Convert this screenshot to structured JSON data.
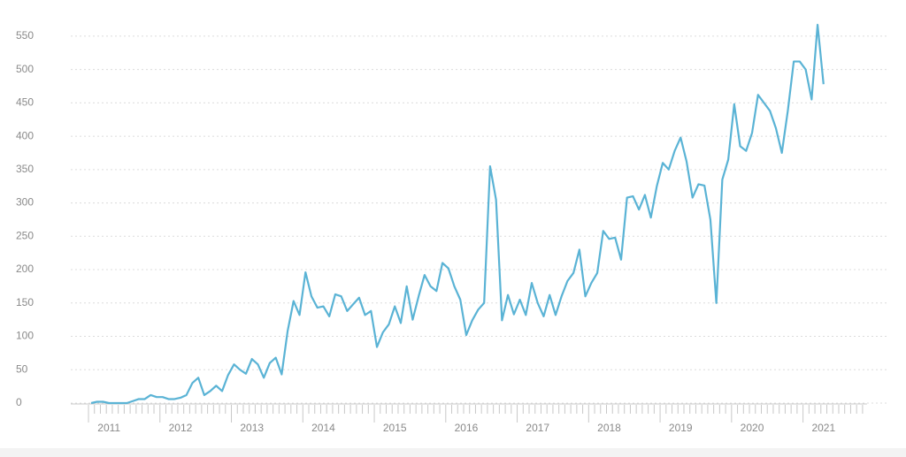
{
  "chart_data": {
    "type": "line",
    "categories": [
      null,
      null,
      null,
      "2011",
      null,
      null,
      null,
      null,
      null,
      null,
      null,
      null,
      null,
      null,
      null,
      "2012",
      null,
      null,
      null,
      null,
      null,
      null,
      null,
      null,
      null,
      null,
      null,
      "2013",
      null,
      null,
      null,
      null,
      null,
      null,
      null,
      null,
      null,
      null,
      null,
      "2014",
      null,
      null,
      null,
      null,
      null,
      null,
      null,
      null,
      null,
      null,
      null,
      "2015",
      null,
      null,
      null,
      null,
      null,
      null,
      null,
      null,
      null,
      null,
      null,
      "2016",
      null,
      null,
      null,
      null,
      null,
      null,
      null,
      null,
      null,
      null,
      null,
      "2017",
      null,
      null,
      null,
      null,
      null,
      null,
      null,
      null,
      null,
      null,
      null,
      "2018",
      null,
      null,
      null,
      null,
      null,
      null,
      null,
      null,
      null,
      null,
      null,
      "2019",
      null,
      null,
      null,
      null,
      null,
      null,
      null,
      null,
      null,
      null,
      null,
      "2020",
      null,
      null,
      null,
      null,
      null,
      null,
      null,
      null,
      null,
      null,
      null,
      "2021",
      null,
      null,
      null,
      null,
      null,
      null,
      null
    ],
    "values": [
      0,
      2,
      2,
      0,
      0,
      0,
      0,
      3,
      6,
      6,
      12,
      9,
      9,
      6,
      6,
      8,
      12,
      30,
      38,
      12,
      18,
      26,
      18,
      42,
      58,
      50,
      44,
      66,
      58,
      38,
      60,
      68,
      43,
      108,
      153,
      132,
      196,
      160,
      143,
      145,
      130,
      163,
      160,
      138,
      148,
      158,
      132,
      138,
      84,
      106,
      118,
      145,
      120,
      175,
      125,
      160,
      192,
      175,
      168,
      210,
      202,
      175,
      155,
      102,
      124,
      140,
      150,
      355,
      305,
      124,
      162,
      133,
      155,
      132,
      180,
      150,
      130,
      162,
      132,
      160,
      183,
      195,
      230,
      160,
      180,
      195,
      258,
      246,
      248,
      215,
      308,
      310,
      290,
      312,
      278,
      325,
      360,
      350,
      378,
      398,
      362,
      308,
      328,
      326,
      275,
      150,
      335,
      365,
      448,
      385,
      378,
      405,
      462,
      450,
      438,
      412,
      375,
      438,
      512,
      512,
      500,
      455,
      567,
      478,
      null,
      null,
      null,
      null,
      null,
      null,
      null
    ],
    "color": "#5ab3d5",
    "ylim": [
      0,
      575
    ],
    "yticks": [
      0,
      50,
      100,
      150,
      200,
      250,
      300,
      350,
      400,
      450,
      500,
      550
    ],
    "grid": true
  }
}
